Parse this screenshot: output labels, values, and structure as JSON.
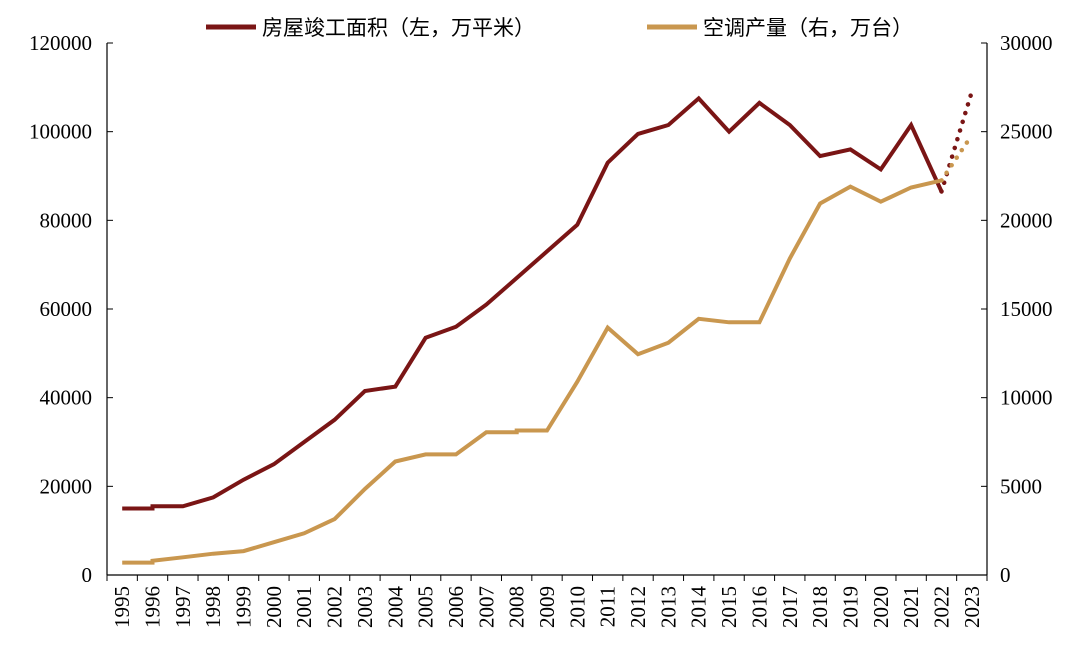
{
  "chart_data": {
    "type": "line",
    "title": "",
    "x": [
      "1995",
      "1996",
      "1997",
      "1998",
      "1999",
      "2000",
      "2001",
      "2002",
      "2003",
      "2004",
      "2005",
      "2006",
      "2007",
      "2008",
      "2009",
      "2010",
      "2011",
      "2012",
      "2013",
      "2014",
      "2015",
      "2016",
      "2017",
      "2018",
      "2019",
      "2020",
      "2021",
      "2022",
      "2023"
    ],
    "y_left": {
      "ticks": [
        0,
        20000,
        40000,
        60000,
        80000,
        100000,
        120000
      ],
      "lim": [
        0,
        120000
      ]
    },
    "y_right": {
      "ticks": [
        0,
        5000,
        10000,
        15000,
        20000,
        25000,
        30000
      ],
      "lim": [
        0,
        30000
      ]
    },
    "legend_position": "top",
    "series": [
      {
        "name": "房屋竣工面积（左，万平米）",
        "axis": "left",
        "color": "#7a1515",
        "points": [
          [
            "1995",
            15000
          ],
          [
            "1996",
            15000
          ],
          [
            "1996",
            15500
          ],
          [
            "1997",
            15500
          ],
          [
            "1998",
            17500
          ],
          [
            "1999",
            21500
          ],
          [
            "2000",
            25000
          ],
          [
            "2001",
            30000
          ],
          [
            "2002",
            35000
          ],
          [
            "2003",
            41500
          ],
          [
            "2004",
            42500
          ],
          [
            "2005",
            53500
          ],
          [
            "2006",
            56000
          ],
          [
            "2007",
            61000
          ],
          [
            "2008",
            67000
          ],
          [
            "2009",
            73000
          ],
          [
            "2010",
            79000
          ],
          [
            "2011",
            93000
          ],
          [
            "2012",
            99500
          ],
          [
            "2013",
            101500
          ],
          [
            "2014",
            107500
          ],
          [
            "2015",
            100000
          ],
          [
            "2016",
            106500
          ],
          [
            "2017",
            101500
          ],
          [
            "2018",
            94500
          ],
          [
            "2019",
            96000
          ],
          [
            "2020",
            91500
          ],
          [
            "2021",
            101500
          ],
          [
            "2022",
            86500
          ]
        ],
        "projection": [
          [
            "2022",
            86500
          ],
          [
            "2023",
            109000
          ]
        ]
      },
      {
        "name": "空调产量（右，万台）",
        "axis": "right",
        "color": "#c9974f",
        "points": [
          [
            "1995",
            700
          ],
          [
            "1996",
            700
          ],
          [
            "1996",
            800
          ],
          [
            "1997",
            1000
          ],
          [
            "1998",
            1200
          ],
          [
            "1999",
            1350
          ],
          [
            "2000",
            1850
          ],
          [
            "2001",
            2350
          ],
          [
            "2002",
            3150
          ],
          [
            "2003",
            4850
          ],
          [
            "2004",
            6400
          ],
          [
            "2005",
            6800
          ],
          [
            "2006",
            6800
          ],
          [
            "2007",
            8050
          ],
          [
            "2008",
            8050
          ],
          [
            "2008",
            8150
          ],
          [
            "2009",
            8150
          ],
          [
            "2010",
            10900
          ],
          [
            "2011",
            13950
          ],
          [
            "2012",
            12450
          ],
          [
            "2013",
            13100
          ],
          [
            "2014",
            14450
          ],
          [
            "2015",
            14250
          ],
          [
            "2016",
            14250
          ],
          [
            "2017",
            17850
          ],
          [
            "2018",
            20950
          ],
          [
            "2019",
            21900
          ],
          [
            "2020",
            21050
          ],
          [
            "2021",
            21850
          ],
          [
            "2022",
            22250
          ]
        ],
        "projection": [
          [
            "2022",
            22250
          ],
          [
            "2023",
            24800
          ]
        ]
      }
    ]
  }
}
